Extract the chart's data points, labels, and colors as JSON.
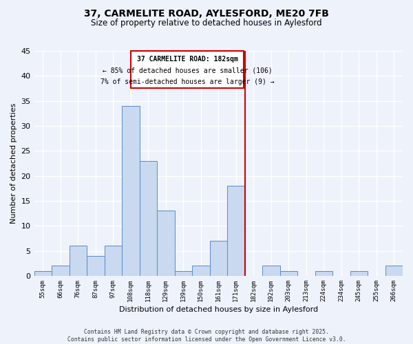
{
  "title": "37, CARMELITE ROAD, AYLESFORD, ME20 7FB",
  "subtitle": "Size of property relative to detached houses in Aylesford",
  "xlabel": "Distribution of detached houses by size in Aylesford",
  "ylabel": "Number of detached properties",
  "bar_labels": [
    "55sqm",
    "66sqm",
    "76sqm",
    "87sqm",
    "97sqm",
    "108sqm",
    "118sqm",
    "129sqm",
    "139sqm",
    "150sqm",
    "161sqm",
    "171sqm",
    "182sqm",
    "192sqm",
    "203sqm",
    "213sqm",
    "224sqm",
    "234sqm",
    "245sqm",
    "255sqm",
    "266sqm"
  ],
  "bar_heights": [
    1,
    2,
    6,
    4,
    6,
    34,
    23,
    13,
    1,
    2,
    7,
    18,
    0,
    2,
    1,
    0,
    1,
    0,
    1,
    0,
    2
  ],
  "bar_color": "#c8d9f0",
  "bar_edge_color": "#5b8ac9",
  "vline_color": "#cc0000",
  "vline_x": 11.5,
  "annotation_title": "37 CARMELITE ROAD: 182sqm",
  "annotation_line1": "← 85% of detached houses are smaller (106)",
  "annotation_line2": "7% of semi-detached houses are larger (9) →",
  "ylim": [
    0,
    45
  ],
  "yticks": [
    0,
    5,
    10,
    15,
    20,
    25,
    30,
    35,
    40,
    45
  ],
  "footer1": "Contains HM Land Registry data © Crown copyright and database right 2025.",
  "footer2": "Contains public sector information licensed under the Open Government Licence v3.0.",
  "bg_color": "#eef2fb",
  "grid_color": "#ffffff"
}
